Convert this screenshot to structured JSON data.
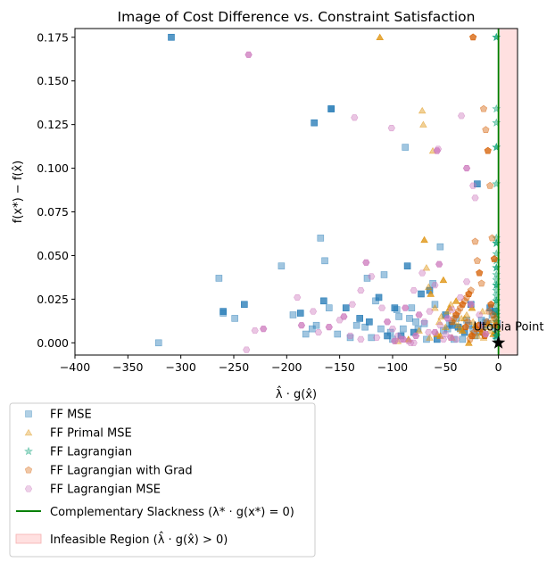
{
  "chart_data": {
    "type": "scatter",
    "title": "Image of Cost Difference vs. Constraint Satisfaction",
    "xlabel": "λ̂ · g(x̂)",
    "ylabel": "f(x*) − f(x̂)",
    "xlim": [
      -400,
      18
    ],
    "ylim": [
      -0.007,
      0.18
    ],
    "xticks": [
      -400,
      -350,
      -300,
      -250,
      -200,
      -150,
      -100,
      -50,
      0
    ],
    "xtick_labels": [
      "−400",
      "−350",
      "−300",
      "−250",
      "−200",
      "−150",
      "−100",
      "−50",
      "0"
    ],
    "yticks": [
      0.0,
      0.025,
      0.05,
      0.075,
      0.1,
      0.125,
      0.15,
      0.175
    ],
    "ytick_labels": [
      "0.000",
      "0.025",
      "0.050",
      "0.075",
      "0.100",
      "0.125",
      "0.150",
      "0.175"
    ],
    "legend_position": "below-left",
    "series": [
      {
        "name": "FF MSE",
        "marker": "square",
        "color": "#1f77b4",
        "x": [
          -309,
          -321,
          -264,
          -260,
          -260,
          -249,
          -240,
          -205,
          -194,
          -187,
          -182,
          -176,
          -174,
          -172,
          -168,
          -165,
          -164,
          -160,
          -158,
          -158,
          -152,
          -144,
          -140,
          -134,
          -131,
          -126,
          -124,
          -122,
          -120,
          -116,
          -113,
          -111,
          -108,
          -105,
          -102,
          -100,
          -98,
          -96,
          -94,
          -92,
          -90,
          -88,
          -86,
          -84,
          -82,
          -80,
          -78,
          -76,
          -73,
          -70,
          -68,
          -65,
          -62,
          -60,
          -58,
          -55,
          -52,
          -50,
          -48,
          -46,
          -44,
          -42,
          -40,
          -38,
          -36,
          -34,
          -32,
          -30,
          -28,
          -26,
          -24,
          -22,
          -20,
          -18,
          -16,
          -14,
          -12,
          -10,
          -8,
          -6,
          -4,
          -3,
          -2,
          -1
        ],
        "y": [
          0.175,
          0.0,
          0.037,
          0.018,
          0.017,
          0.014,
          0.022,
          0.044,
          0.016,
          0.017,
          0.005,
          0.008,
          0.126,
          0.01,
          0.06,
          0.024,
          0.047,
          0.02,
          0.134,
          0.134,
          0.005,
          0.02,
          0.003,
          0.01,
          0.014,
          0.009,
          0.037,
          0.012,
          0.003,
          0.024,
          0.026,
          0.008,
          0.039,
          0.004,
          0.006,
          0.002,
          0.02,
          0.019,
          0.015,
          0.004,
          0.008,
          0.112,
          0.044,
          0.014,
          0.02,
          0.006,
          0.012,
          0.008,
          0.028,
          0.011,
          0.002,
          0.03,
          0.034,
          0.022,
          0.002,
          0.055,
          0.007,
          0.016,
          0.008,
          0.011,
          0.01,
          0.002,
          0.014,
          0.009,
          0.008,
          0.002,
          0.006,
          0.013,
          0.01,
          0.022,
          0.008,
          0.004,
          0.091,
          0.006,
          0.013,
          0.01,
          0.012,
          0.011,
          0.02,
          0.016,
          0.009,
          0.018,
          0.004,
          0.011
        ]
      },
      {
        "name": "FF Primal MSE",
        "marker": "triangle",
        "color": "#de8f05",
        "x": [
          -112,
          -72,
          -71,
          -70,
          -68,
          -66,
          -64,
          -62,
          -60,
          -58,
          -56,
          -54,
          -52,
          -50,
          -48,
          -46,
          -44,
          -42,
          -40,
          -38,
          -36,
          -34,
          -32,
          -30,
          -28,
          -26,
          -24,
          -22,
          -20,
          -18,
          -16,
          -14,
          -12,
          -10,
          -8,
          -6,
          -5,
          -4,
          -3,
          -2,
          -1,
          -15,
          -25,
          -35,
          -45,
          -55,
          -65,
          -75,
          -85,
          -95
        ],
        "y": [
          0.175,
          0.133,
          0.125,
          0.059,
          0.043,
          0.032,
          0.028,
          0.11,
          0.02,
          0.005,
          0.012,
          0.015,
          0.036,
          0.009,
          0.018,
          0.02,
          0.003,
          0.012,
          0.024,
          0.01,
          0.008,
          0.007,
          0.014,
          0.016,
          0.0,
          0.005,
          0.012,
          0.01,
          0.004,
          0.008,
          0.006,
          0.003,
          0.009,
          0.011,
          0.007,
          0.013,
          0.005,
          0.01,
          0.006,
          0.012,
          0.008,
          0.018,
          0.02,
          0.014,
          0.022,
          0.004,
          0.003,
          0.007,
          0.002,
          0.001
        ]
      },
      {
        "name": "FF Lagrangian",
        "marker": "star",
        "color": "#029e73",
        "x": [
          -2,
          -2,
          -2,
          -2,
          -2,
          -2,
          -2,
          -2,
          -2,
          -2,
          -2,
          -2,
          -2,
          -2,
          -2,
          -2,
          -2,
          -2,
          -2,
          -2,
          -2,
          -2,
          -2,
          -2,
          -2,
          -2
        ],
        "y": [
          0.175,
          0.134,
          0.126,
          0.112,
          0.091,
          0.06,
          0.057,
          0.051,
          0.047,
          0.043,
          0.039,
          0.036,
          0.033,
          0.03,
          0.027,
          0.024,
          0.021,
          0.018,
          0.016,
          0.014,
          0.012,
          0.01,
          0.008,
          0.006,
          0.004,
          0.002
        ]
      },
      {
        "name": "FF Lagrangian with Grad",
        "marker": "pentagon",
        "color": "#d55e00",
        "x": [
          -24,
          -14,
          -12,
          -10,
          -8,
          -6,
          -4,
          -22,
          -20,
          -18,
          -16,
          -26,
          -28,
          -30,
          -32,
          -34,
          -36,
          -38,
          -40,
          -42,
          -44,
          -19,
          -17,
          -15,
          -13,
          -11,
          -9,
          -7,
          -5,
          -3,
          -2,
          -21,
          -23,
          -25,
          -27,
          -29,
          -31
        ],
        "y": [
          0.175,
          0.134,
          0.122,
          0.11,
          0.09,
          0.06,
          0.048,
          0.058,
          0.047,
          0.04,
          0.034,
          0.03,
          0.028,
          0.026,
          0.024,
          0.022,
          0.02,
          0.018,
          0.016,
          0.014,
          0.012,
          0.01,
          0.008,
          0.006,
          0.004,
          0.012,
          0.018,
          0.022,
          0.016,
          0.014,
          0.01,
          0.008,
          0.006,
          0.004,
          0.002,
          0.012,
          0.009
        ]
      },
      {
        "name": "FF Lagrangian MSE",
        "marker": "hexagon",
        "color": "#cc78bc",
        "x": [
          -236,
          -136,
          -101,
          -58,
          -57,
          -35,
          -30,
          -22,
          -24,
          -56,
          -72,
          -80,
          -88,
          -60,
          -120,
          -125,
          -130,
          -138,
          -146,
          -150,
          -190,
          -222,
          -230,
          -238,
          -186,
          -175,
          -170,
          -160,
          -140,
          -110,
          -105,
          -100,
          -95,
          -90,
          -85,
          -80,
          -75,
          -70,
          -65,
          -60,
          -55,
          -50,
          -45,
          -40,
          -30,
          -26,
          -18,
          -16,
          -12,
          -130,
          -115,
          -98,
          -92,
          -83,
          -78,
          -66,
          -52,
          -48,
          -44,
          -36
        ],
        "y": [
          0.165,
          0.129,
          0.123,
          0.11,
          0.111,
          0.13,
          0.1,
          0.083,
          0.09,
          0.045,
          0.04,
          0.03,
          0.02,
          0.033,
          0.038,
          0.046,
          0.03,
          0.022,
          0.015,
          0.013,
          0.026,
          0.008,
          0.007,
          -0.004,
          0.01,
          0.018,
          0.006,
          0.009,
          0.004,
          0.02,
          0.012,
          0.008,
          0.004,
          0.002,
          0.001,
          0.0,
          0.016,
          0.012,
          0.018,
          0.006,
          0.01,
          0.005,
          0.003,
          0.002,
          0.035,
          0.022,
          0.016,
          0.01,
          0.005,
          0.002,
          0.003,
          0.001,
          0.002,
          0.0,
          0.004,
          0.006,
          0.002,
          0.014,
          0.019,
          0.026
        ]
      }
    ],
    "reference_line": {
      "name": "Complementary Slackness (λ* · g(x*) = 0)",
      "x": 0,
      "color": "#008000"
    },
    "shaded_region": {
      "name": "Infeasible Region (λ̂ · g(x̂) > 0)",
      "x_range": [
        0,
        18
      ],
      "color": "#ffe0e0"
    },
    "annotation": {
      "text": "Utopia Point",
      "x": 0,
      "y": 0.0,
      "marker": "star"
    }
  }
}
